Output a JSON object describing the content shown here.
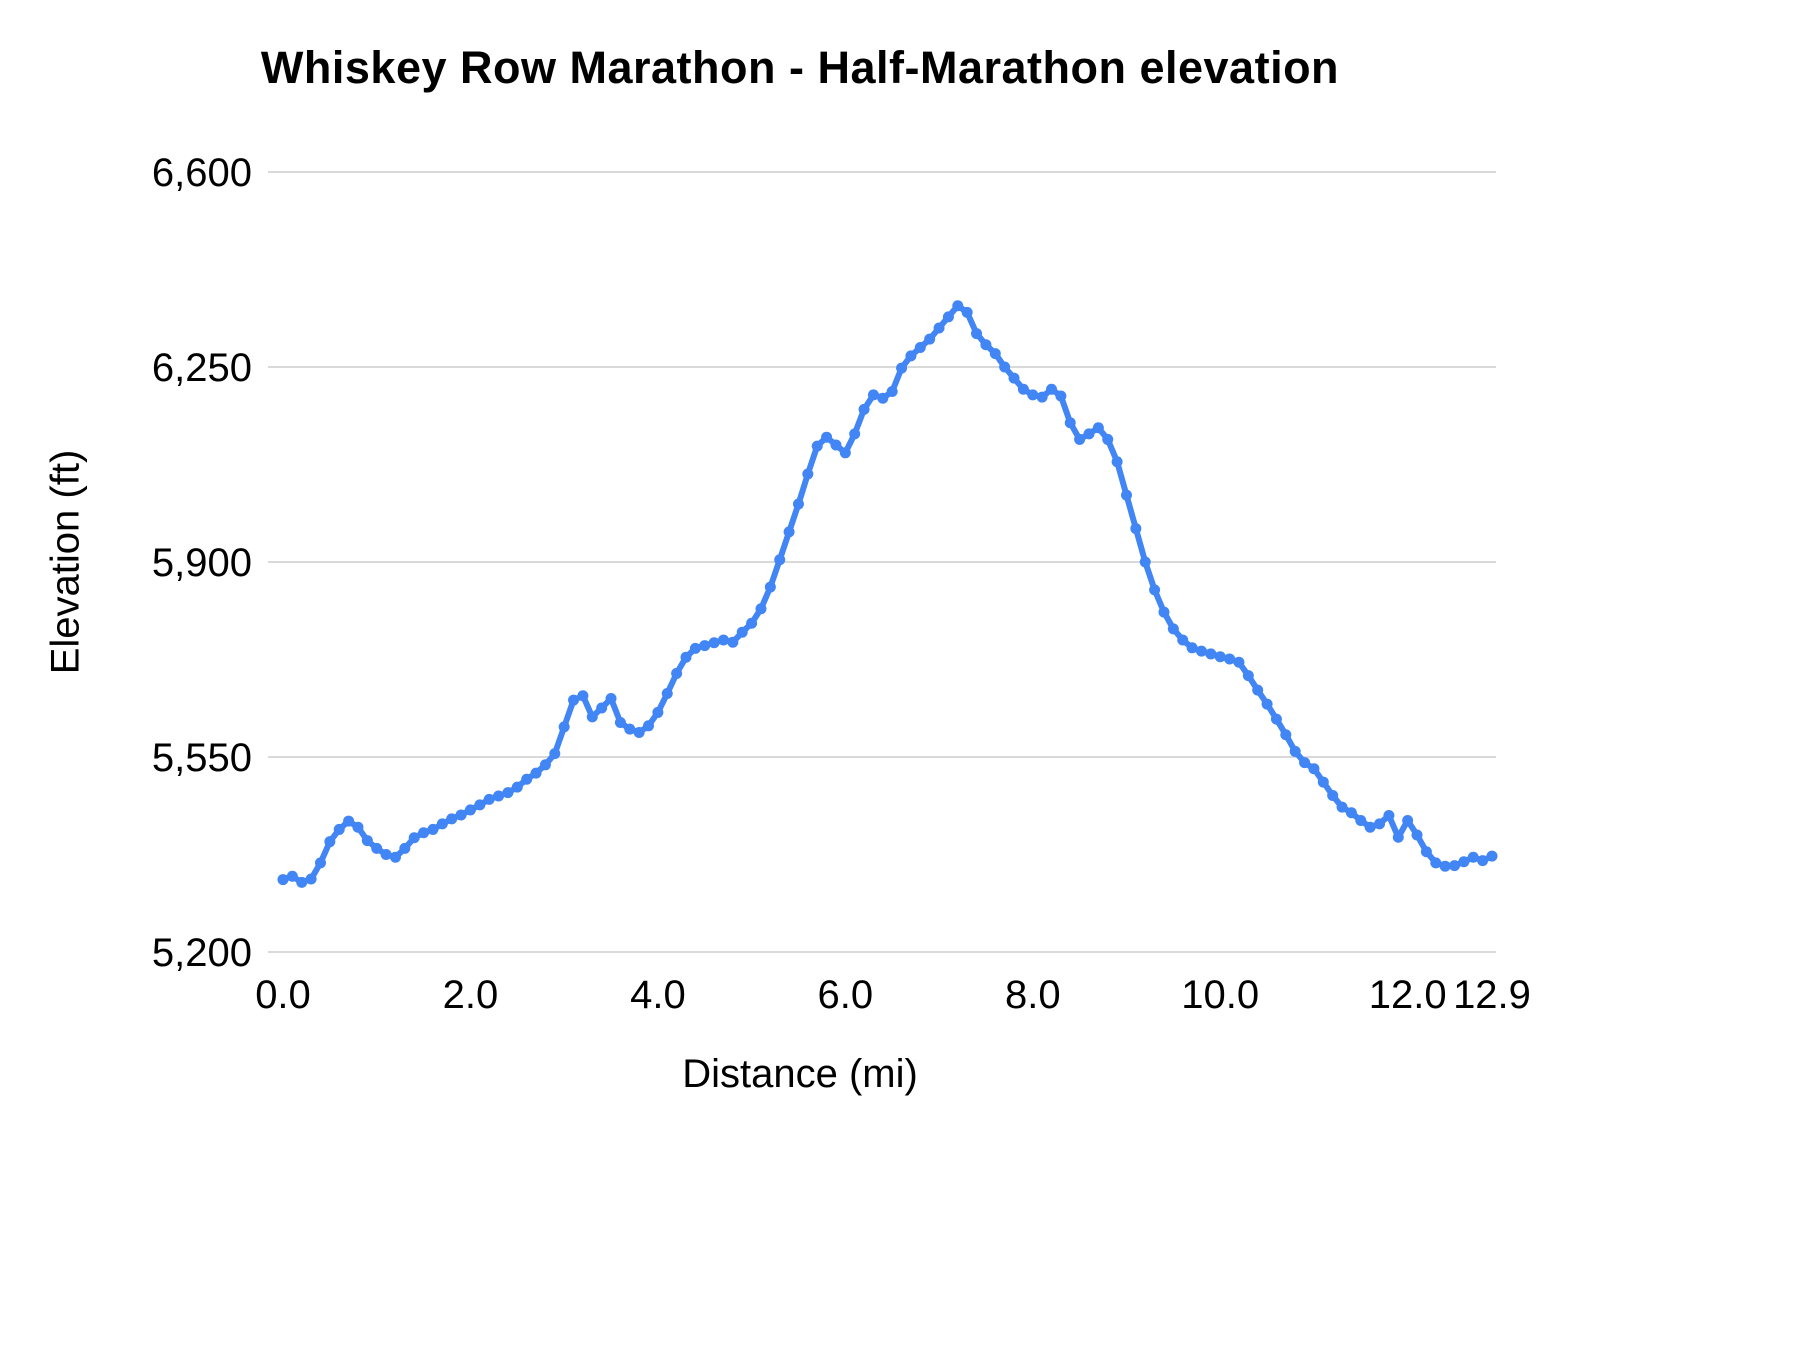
{
  "chart_data": {
    "type": "scatter",
    "title": "Whiskey Row Marathon - Half-Marathon elevation",
    "xlabel": "Distance (mi)",
    "ylabel": "Elevation (ft)",
    "xlim": [
      0,
      12.9
    ],
    "ylim": [
      5200,
      6600
    ],
    "grid": "horizontal-only",
    "legend_position": "none",
    "point_color": "#4285f4",
    "grid_color": "#d9d9d9",
    "text_color": "#000000",
    "x_ticks": [
      {
        "value": 0,
        "label": "0.0"
      },
      {
        "value": 2,
        "label": "2.0"
      },
      {
        "value": 4,
        "label": "4.0"
      },
      {
        "value": 6,
        "label": "6.0"
      },
      {
        "value": 8,
        "label": "8.0"
      },
      {
        "value": 10,
        "label": "10.0"
      },
      {
        "value": 12,
        "label": "12.0"
      },
      {
        "value": 12.9,
        "label": "12.9"
      }
    ],
    "y_ticks": [
      {
        "value": 5200,
        "label": "5,200"
      },
      {
        "value": 5550,
        "label": "5,550"
      },
      {
        "value": 5900,
        "label": "5,900"
      },
      {
        "value": 6250,
        "label": "6,250"
      },
      {
        "value": 6600,
        "label": "6,600"
      }
    ],
    "series": [
      {
        "name": "elevation",
        "x": [
          0,
          0.1,
          0.2,
          0.3,
          0.4,
          0.5,
          0.6,
          0.7,
          0.8,
          0.9,
          1,
          1.1,
          1.2,
          1.3,
          1.4,
          1.5,
          1.6,
          1.7,
          1.8,
          1.9,
          2,
          2.1,
          2.2,
          2.3,
          2.4,
          2.5,
          2.6,
          2.7,
          2.8,
          2.9,
          3,
          3.1,
          3.2,
          3.3,
          3.4,
          3.5,
          3.6,
          3.7,
          3.8,
          3.9,
          4,
          4.1,
          4.2,
          4.3,
          4.4,
          4.5,
          4.6,
          4.7,
          4.8,
          4.9,
          5,
          5.1,
          5.2,
          5.3,
          5.4,
          5.5,
          5.6,
          5.7,
          5.8,
          5.9,
          6,
          6.1,
          6.2,
          6.3,
          6.4,
          6.5,
          6.6,
          6.7,
          6.8,
          6.9,
          7,
          7.1,
          7.2,
          7.3,
          7.4,
          7.5,
          7.6,
          7.7,
          7.8,
          7.9,
          8,
          8.1,
          8.2,
          8.3,
          8.4,
          8.5,
          8.6,
          8.7,
          8.8,
          8.9,
          9,
          9.1,
          9.2,
          9.3,
          9.4,
          9.5,
          9.6,
          9.7,
          9.8,
          9.9,
          10,
          10.1,
          10.2,
          10.3,
          10.4,
          10.5,
          10.6,
          10.7,
          10.8,
          10.9,
          11,
          11.1,
          11.2,
          11.3,
          11.4,
          11.5,
          11.6,
          11.7,
          11.8,
          11.9,
          12,
          12.1,
          12.2,
          12.3,
          12.4,
          12.5,
          12.6,
          12.7,
          12.8,
          12.9
        ],
        "y": [
          5330,
          5336,
          5325,
          5331,
          5360,
          5398,
          5420,
          5435,
          5424,
          5400,
          5386,
          5375,
          5370,
          5386,
          5405,
          5414,
          5420,
          5430,
          5439,
          5446,
          5455,
          5464,
          5474,
          5480,
          5486,
          5496,
          5510,
          5521,
          5536,
          5556,
          5604,
          5652,
          5660,
          5622,
          5638,
          5655,
          5612,
          5600,
          5594,
          5606,
          5630,
          5664,
          5700,
          5729,
          5745,
          5750,
          5755,
          5760,
          5756,
          5774,
          5790,
          5816,
          5855,
          5904,
          5954,
          6004,
          6058,
          6108,
          6124,
          6110,
          6096,
          6130,
          6174,
          6200,
          6194,
          6206,
          6248,
          6270,
          6285,
          6300,
          6320,
          6340,
          6360,
          6348,
          6310,
          6290,
          6274,
          6250,
          6230,
          6210,
          6200,
          6196,
          6210,
          6198,
          6150,
          6120,
          6130,
          6141,
          6120,
          6080,
          6020,
          5960,
          5900,
          5850,
          5810,
          5780,
          5760,
          5746,
          5740,
          5735,
          5730,
          5726,
          5720,
          5696,
          5670,
          5645,
          5618,
          5590,
          5560,
          5540,
          5529,
          5505,
          5481,
          5460,
          5450,
          5436,
          5424,
          5430,
          5445,
          5406,
          5436,
          5410,
          5380,
          5360,
          5354,
          5355,
          5362,
          5370,
          5364,
          5372
        ]
      }
    ]
  }
}
